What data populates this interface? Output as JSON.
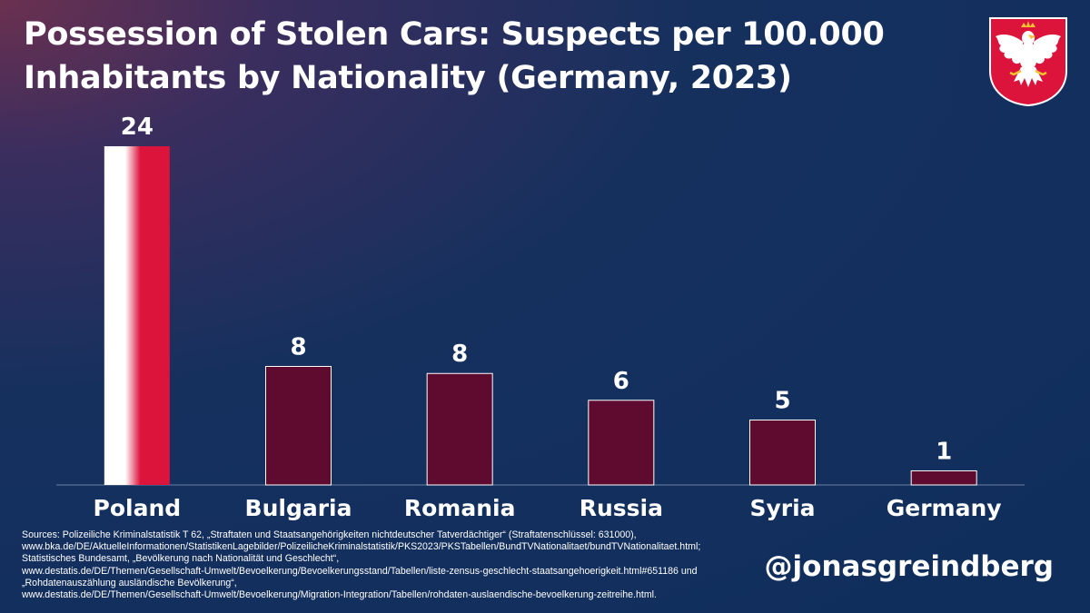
{
  "chart_data": {
    "type": "bar",
    "title": "Possession of Stolen Cars: Suspects per 100.000 Inhabitants by Nationality (Germany, 2023)",
    "categories": [
      "Poland",
      "Bulgaria",
      "Romania",
      "Russia",
      "Syria",
      "Germany"
    ],
    "values": [
      24,
      8.4,
      7.9,
      6,
      4.6,
      1
    ],
    "value_labels": [
      "24",
      "8",
      "8",
      "6",
      "5",
      "1"
    ],
    "ylim": [
      0,
      26
    ],
    "grid": false,
    "legend": "none",
    "colors": {
      "bar": "#5e0b2f",
      "bar_border": "#ffffff",
      "highlight_white": "#ffffff",
      "highlight_red": "#dc143c",
      "baseline": "#8fa3c4"
    }
  },
  "sources_text": "Sources: Polizeiliche Kriminalstatistik T 62, „Straftaten und Staatsangehörigkeiten nichtdeutscher Tatverdächtiger“ (Straftatenschlüssel: 631000),\nwww.bka.de/DE/AktuelleInformationen/StatistikenLagebilder/PolizeilicheKriminalstatistik/PKS2023/PKSTabellen/BundTVNationalitaet/bundTVNationalitaet.html;\nStatistisches Bundesamt, „Bevölkerung nach Nationalität und Geschlecht“,\nwww.destatis.de/DE/Themen/Gesellschaft-Umwelt/Bevoelkerung/Bevoelkerungsstand/Tabellen/liste-zensus-geschlecht-staatsangehoerigkeit.html#651186 und\n„Rohdatenauszählung ausländische Bevölkerung“,\nwww.destatis.de/DE/Themen/Gesellschaft-Umwelt/Bevoelkerung/Migration-Integration/Tabellen/rohdaten-auslaendische-bevoelkerung-zeitreihe.html.",
  "handle": "@jonasgreindberg",
  "emblem_icon": "polish-white-eagle-emblem"
}
